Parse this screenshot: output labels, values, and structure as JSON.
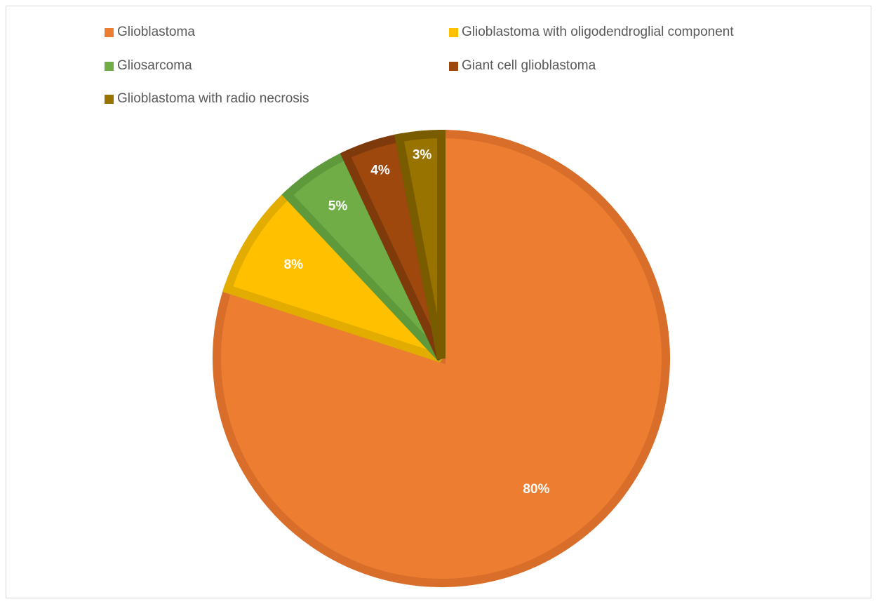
{
  "chart_data": {
    "type": "pie",
    "title": "",
    "series": [
      {
        "name": "",
        "categories": [
          "Glioblastoma",
          "Glioblastoma with oligodendroglial component",
          "Gliosarcoma",
          "Giant cell glioblastoma",
          "Glioblastoma with radio necrosis"
        ],
        "values": [
          80,
          8,
          5,
          4,
          3
        ],
        "data_labels": [
          "80%",
          "8%",
          "5%",
          "4%",
          "3%"
        ]
      }
    ],
    "legend_position": "top",
    "start_angle": "12 o'clock",
    "direction": "clockwise"
  },
  "colors": {
    "fills": [
      "#ED7D31",
      "#FFC000",
      "#70AD47",
      "#9E480E",
      "#997300"
    ],
    "borders": [
      "#D86E2A",
      "#E2AC00",
      "#5E9A3C",
      "#7F3A0B",
      "#7A5C00"
    ],
    "legend_text": "#595959",
    "label_text": "#FFFFFF",
    "frame_border": "#D9D9D9"
  }
}
